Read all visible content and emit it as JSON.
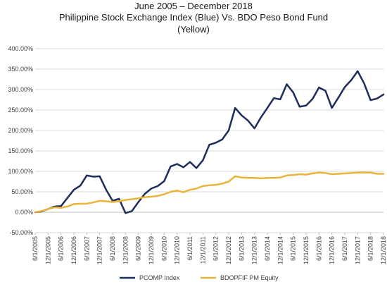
{
  "chart_data": {
    "type": "line",
    "title_lines": [
      "June 2005 – December 2018",
      "Philippine Stock Exchange Index (Blue) Vs. BDO Peso Bond Fund",
      "(Yellow)"
    ],
    "y_tick_labels": [
      "-50.00%",
      "0.00%",
      "50.00%",
      "100.00%",
      "150.00%",
      "200.00%",
      "250.00%",
      "300.00%",
      "350.00%",
      "400.00%"
    ],
    "y_ticks": [
      -50,
      0,
      50,
      100,
      150,
      200,
      250,
      300,
      350,
      400
    ],
    "ylim": [
      -50,
      400
    ],
    "x_tick_labels": [
      "6/1/2005",
      "12/1/2005",
      "6/1/2006",
      "12/1/2006",
      "6/1/2007",
      "12/1/2007",
      "6/1/2008",
      "12/1/2008",
      "6/1/2009",
      "12/1/2009",
      "6/1/2010",
      "12/1/2010",
      "6/1/2011",
      "12/1/2011",
      "6/1/2012",
      "12/1/2012",
      "6/1/2013",
      "12/1/2013",
      "6/1/2014",
      "12/1/2014",
      "6/1/2015",
      "12/1/2015",
      "6/1/2016",
      "12/1/2016",
      "6/1/2017",
      "12/1/2017",
      "6/1/2018",
      "12/1/2018"
    ],
    "x_unit": "quarter",
    "x_start": "6/1/2005",
    "grid": "horizontal",
    "legend_position": "bottom",
    "series": [
      {
        "name": "PCOMP Index",
        "color": "#1f2d5c",
        "values": [
          0,
          2,
          8,
          14,
          15,
          35,
          55,
          65,
          90,
          87,
          88,
          55,
          28,
          33,
          -2,
          3,
          25,
          45,
          58,
          64,
          76,
          112,
          118,
          110,
          123,
          108,
          127,
          165,
          170,
          178,
          200,
          255,
          237,
          224,
          205,
          232,
          255,
          279,
          276,
          313,
          293,
          258,
          261,
          277,
          305,
          297,
          255,
          280,
          306,
          323,
          345,
          315,
          274,
          278,
          288
        ]
      },
      {
        "name": "BDOPFIF PM Equity",
        "color": "#e8b43c",
        "values": [
          0,
          3,
          8,
          12,
          11,
          14,
          20,
          21,
          21,
          24,
          28,
          27,
          25,
          27,
          30,
          32,
          34,
          37,
          38,
          40,
          44,
          50,
          53,
          49,
          55,
          58,
          64,
          66,
          67,
          70,
          75,
          88,
          85,
          84,
          84,
          83,
          84,
          84,
          85,
          90,
          91,
          93,
          92,
          95,
          97,
          96,
          93,
          94,
          95,
          96,
          97,
          97,
          97,
          94,
          94
        ]
      }
    ]
  }
}
